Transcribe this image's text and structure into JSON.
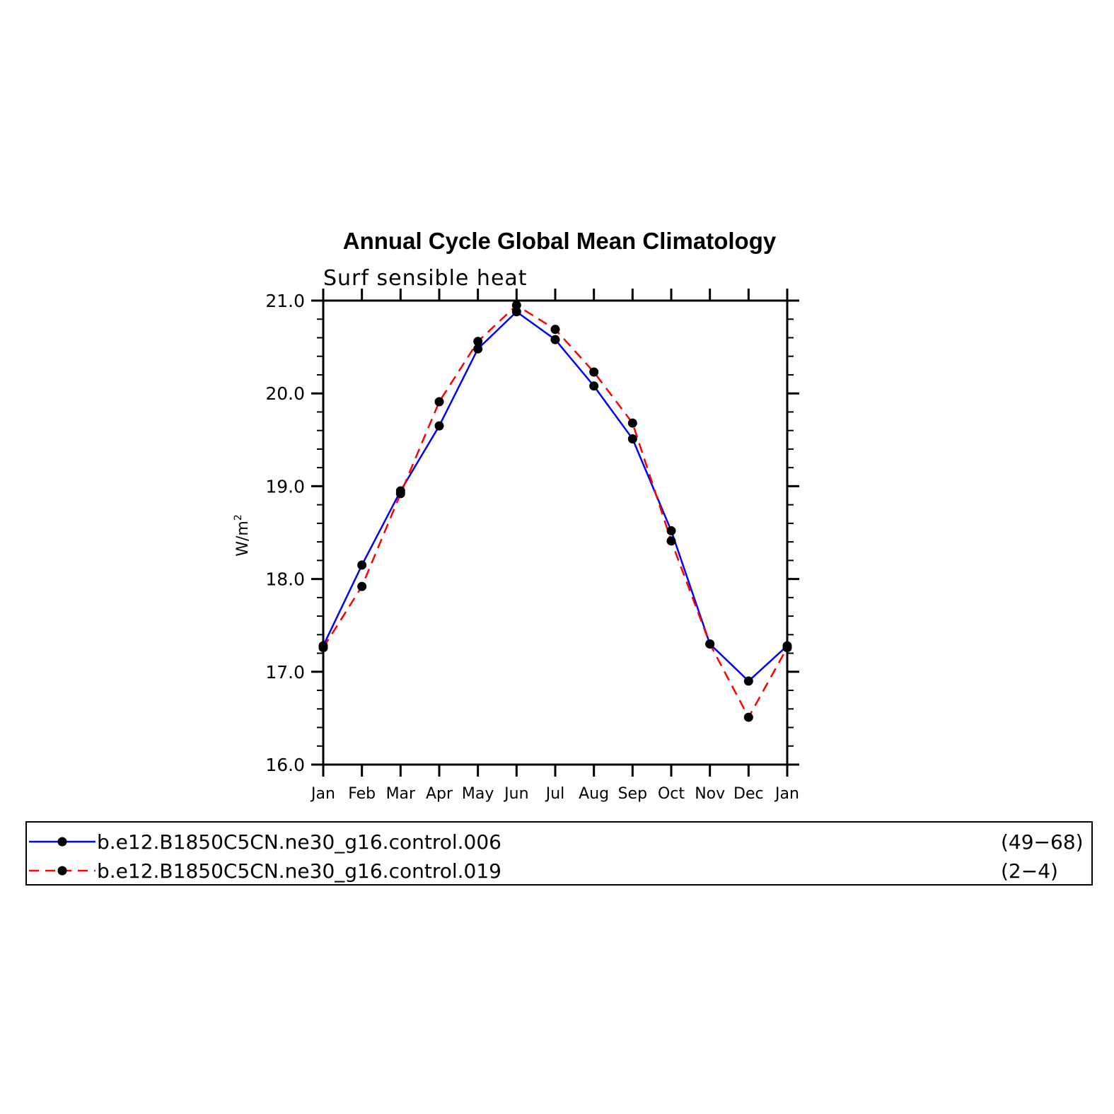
{
  "chart_data": {
    "type": "line",
    "title": "Annual Cycle Global Mean Climatology",
    "subtitle": "Surf sensible heat",
    "ylabel": "W/m",
    "ylabel_superscript": "2",
    "categories": [
      "Jan",
      "Feb",
      "Mar",
      "Apr",
      "May",
      "Jun",
      "Jul",
      "Aug",
      "Sep",
      "Oct",
      "Nov",
      "Dec",
      "Jan"
    ],
    "ylim": [
      16.0,
      21.0
    ],
    "yticks": [
      "16.0",
      "17.0",
      "18.0",
      "19.0",
      "20.0",
      "21.0"
    ],
    "series": [
      {
        "name": "b.e12.B1850C5CN.ne30_g16.control.006",
        "years": "(49−68)",
        "color": "#0000ff",
        "style": "solid",
        "values": [
          17.28,
          18.15,
          18.95,
          19.65,
          20.48,
          20.88,
          20.58,
          20.08,
          19.51,
          18.52,
          17.3,
          16.9,
          17.28
        ]
      },
      {
        "name": "b.e12.B1850C5CN.ne30_g16.control.019",
        "years": "(2−4)",
        "color": "#ff0000",
        "style": "dashed",
        "values": [
          17.26,
          17.92,
          18.92,
          19.91,
          20.56,
          20.95,
          20.69,
          20.23,
          19.68,
          18.41,
          17.3,
          16.51,
          17.26
        ]
      }
    ],
    "marker_color": "#000000",
    "grid": false,
    "legend_position": "bottom"
  }
}
